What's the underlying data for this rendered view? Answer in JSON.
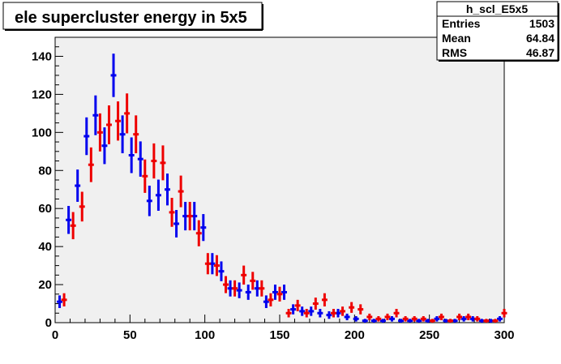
{
  "chart_data": {
    "type": "scatter",
    "title": "ele supercluster energy in 5x5",
    "stats_box": {
      "name": "h_scl_E5x5",
      "rows": [
        {
          "label": "Entries",
          "value": "1503"
        },
        {
          "label": "Mean",
          "value": "64.84"
        },
        {
          "label": "RMS",
          "value": "46.87"
        }
      ]
    },
    "xlim": [
      0,
      300
    ],
    "ylim": [
      0,
      150
    ],
    "x_ticks": [
      "0",
      "50",
      "100",
      "150",
      "200",
      "250",
      "300"
    ],
    "y_ticks": [
      "0",
      "20",
      "40",
      "60",
      "80",
      "100",
      "120",
      "140"
    ],
    "bin_width": 3.75,
    "grid": false,
    "series": [
      {
        "color": "#0000ee",
        "x": [
          3,
          9,
          15,
          21,
          27,
          33,
          39,
          45,
          51,
          57,
          63,
          69,
          75,
          81,
          87,
          93,
          99,
          105,
          111,
          117,
          123,
          129,
          135,
          141,
          147,
          153,
          159,
          165,
          171,
          177,
          183,
          189,
          195,
          201,
          207,
          213,
          219,
          225,
          231,
          237,
          243,
          249,
          255,
          261,
          267,
          273,
          279,
          285,
          291,
          297
        ],
        "y": [
          11,
          54,
          72,
          98,
          109,
          93,
          130,
          99,
          88,
          86,
          64,
          67,
          70,
          52,
          56,
          56,
          50,
          31,
          27,
          18,
          17,
          16,
          18,
          11,
          16,
          16,
          7,
          6,
          6,
          5,
          4,
          5,
          3,
          2,
          1,
          1,
          1,
          2,
          1,
          1,
          1,
          1,
          2,
          1,
          1,
          2,
          2,
          1,
          1,
          2
        ]
      },
      {
        "color": "#ee0000",
        "x": [
          6,
          12,
          18,
          24,
          30,
          36,
          42,
          48,
          54,
          60,
          66,
          72,
          78,
          84,
          90,
          96,
          102,
          108,
          114,
          120,
          126,
          132,
          138,
          144,
          150,
          156,
          162,
          168,
          174,
          180,
          186,
          192,
          198,
          204,
          210,
          216,
          222,
          228,
          234,
          240,
          246,
          252,
          258,
          264,
          270,
          276,
          282,
          288,
          294,
          300
        ],
        "y": [
          12,
          51,
          61,
          83,
          100,
          104,
          106,
          110,
          99,
          77,
          85,
          84,
          58,
          69,
          56,
          47,
          31,
          30,
          20,
          18,
          25,
          22,
          18,
          12,
          15,
          5,
          9,
          5,
          10,
          12,
          5,
          6,
          8,
          7,
          3,
          2,
          3,
          5,
          2,
          2,
          2,
          1,
          3,
          1,
          3,
          3,
          2,
          1,
          1,
          5
        ]
      }
    ]
  }
}
